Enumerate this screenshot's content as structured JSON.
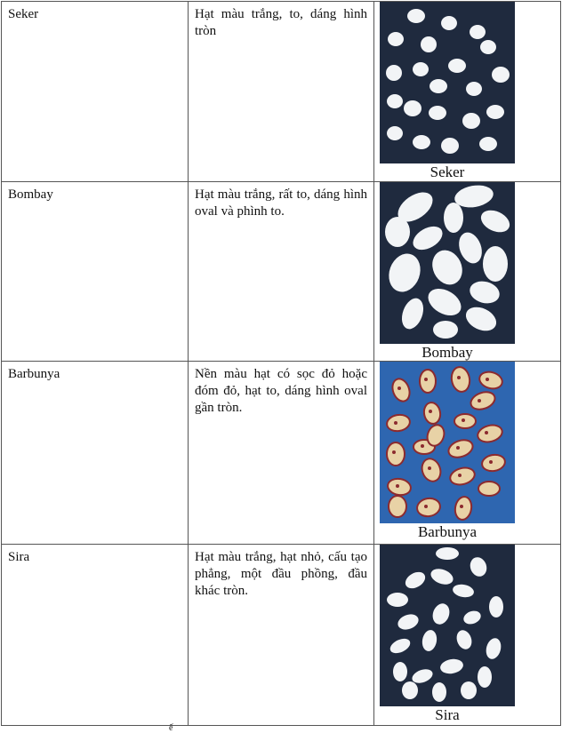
{
  "rows": [
    {
      "name": "Seker",
      "description": "Hạt màu trắng, to, dáng hình tròn",
      "caption": "Seker",
      "photo": {
        "background": "#1f2a3e",
        "bean_color": "#f2f4f6",
        "bean_shape": "round"
      }
    },
    {
      "name": "Bombay",
      "description": "Hạt màu trắng, rất to, dáng hình oval và phình to.",
      "caption": "Bombay",
      "photo": {
        "background": "#1f2a3e",
        "bean_color": "#f2f4f6",
        "bean_shape": "large oval"
      }
    },
    {
      "name": "Barbunya",
      "description": "Nền màu hạt có sọc đỏ hoặc đóm đỏ, hạt to, dáng hình oval gần tròn.",
      "caption": "Barbunya",
      "photo": {
        "background": "#2e66b0",
        "bean_color": "#e8d2a6",
        "bean_speckle": "#8c2a2e",
        "bean_shape": "speckled oval"
      }
    },
    {
      "name": "Sira",
      "description": "Hạt màu trắng, hạt nhỏ, cấu tạo phẳng, một đầu phồng, đầu khác tròn.",
      "caption": "Sira",
      "photo": {
        "background": "#1f2a3e",
        "bean_color": "#f2f4f6",
        "bean_shape": "small oval"
      }
    }
  ],
  "footer_fragment": "ế"
}
